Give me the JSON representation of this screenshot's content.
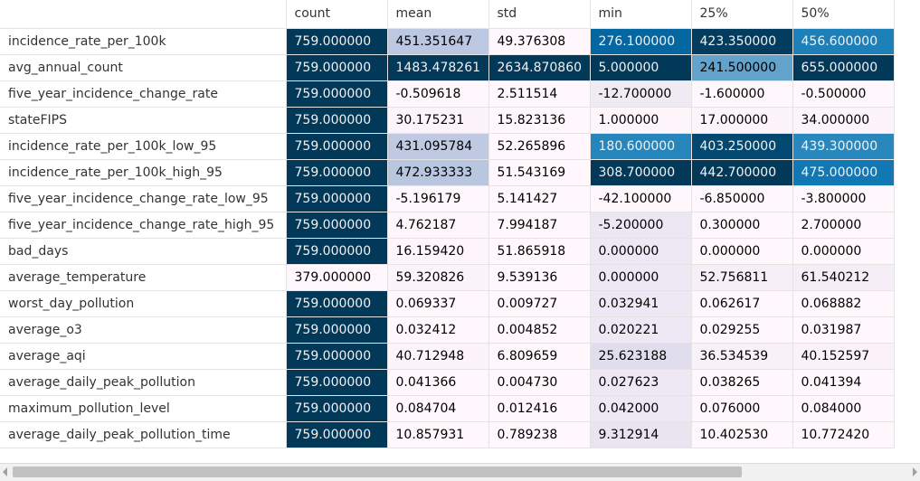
{
  "columns": [
    "count",
    "mean",
    "std",
    "min",
    "25%",
    "50%"
  ],
  "rows": [
    {
      "label": "incidence_rate_per_100k",
      "cells": [
        {
          "v": "759.000000",
          "bg": "#023858"
        },
        {
          "v": "451.351647",
          "bg": "#bcc7e1"
        },
        {
          "v": "49.376308",
          "bg": "#fff7fb"
        },
        {
          "v": "276.100000",
          "bg": "#0567a1"
        },
        {
          "v": "423.350000",
          "bg": "#023d60"
        },
        {
          "v": "456.600000",
          "bg": "#1e80b8"
        }
      ]
    },
    {
      "label": "avg_annual_count",
      "cells": [
        {
          "v": "759.000000",
          "bg": "#023858"
        },
        {
          "v": "1483.478261",
          "bg": "#023858"
        },
        {
          "v": "2634.870860",
          "bg": "#023858"
        },
        {
          "v": "5.000000",
          "bg": "#023858"
        },
        {
          "v": "241.500000",
          "bg": "#62a2cb"
        },
        {
          "v": "655.000000",
          "bg": "#023858"
        }
      ]
    },
    {
      "label": "five_year_incidence_change_rate",
      "cells": [
        {
          "v": "759.000000",
          "bg": "#023858"
        },
        {
          "v": "-0.509618",
          "bg": "#fff7fb"
        },
        {
          "v": "2.511514",
          "bg": "#fff7fb"
        },
        {
          "v": "-12.700000",
          "bg": "#f0eaf4"
        },
        {
          "v": "-1.600000",
          "bg": "#fff7fb"
        },
        {
          "v": "-0.500000",
          "bg": "#fff7fb"
        }
      ]
    },
    {
      "label": "stateFIPS",
      "cells": [
        {
          "v": "759.000000",
          "bg": "#023858"
        },
        {
          "v": "30.175231",
          "bg": "#fcf4fa"
        },
        {
          "v": "15.823136",
          "bg": "#fff7fb"
        },
        {
          "v": "1.000000",
          "bg": "#fdf5fa"
        },
        {
          "v": "17.000000",
          "bg": "#fcf4fa"
        },
        {
          "v": "34.000000",
          "bg": "#fcf4fa"
        }
      ]
    },
    {
      "label": "incidence_rate_per_100k_low_95",
      "cells": [
        {
          "v": "759.000000",
          "bg": "#023858"
        },
        {
          "v": "431.095784",
          "bg": "#c0c9e2"
        },
        {
          "v": "52.265896",
          "bg": "#fff7fb"
        },
        {
          "v": "180.600000",
          "bg": "#2685bb"
        },
        {
          "v": "403.250000",
          "bg": "#034871"
        },
        {
          "v": "439.300000",
          "bg": "#2887bc"
        }
      ]
    },
    {
      "label": "incidence_rate_per_100k_high_95",
      "cells": [
        {
          "v": "759.000000",
          "bg": "#023858"
        },
        {
          "v": "472.933333",
          "bg": "#b9c6e0"
        },
        {
          "v": "51.543169",
          "bg": "#fff7fb"
        },
        {
          "v": "308.700000",
          "bg": "#023858"
        },
        {
          "v": "442.700000",
          "bg": "#023858"
        },
        {
          "v": "475.000000",
          "bg": "#1278b4"
        }
      ]
    },
    {
      "label": "five_year_incidence_change_rate_low_95",
      "cells": [
        {
          "v": "759.000000",
          "bg": "#023858"
        },
        {
          "v": "-5.196179",
          "bg": "#fff7fb"
        },
        {
          "v": "5.141427",
          "bg": "#fff7fb"
        },
        {
          "v": "-42.100000",
          "bg": "#fff7fb"
        },
        {
          "v": "-6.850000",
          "bg": "#fff7fb"
        },
        {
          "v": "-3.800000",
          "bg": "#fff7fb"
        }
      ]
    },
    {
      "label": "five_year_incidence_change_rate_high_95",
      "cells": [
        {
          "v": "759.000000",
          "bg": "#023858"
        },
        {
          "v": "4.762187",
          "bg": "#fef6fa"
        },
        {
          "v": "7.994187",
          "bg": "#fff7fb"
        },
        {
          "v": "-5.200000",
          "bg": "#ece7f2"
        },
        {
          "v": "0.300000",
          "bg": "#fff7fb"
        },
        {
          "v": "2.700000",
          "bg": "#fff7fb"
        }
      ]
    },
    {
      "label": "bad_days",
      "cells": [
        {
          "v": "759.000000",
          "bg": "#023858"
        },
        {
          "v": "16.159420",
          "bg": "#fdf5fa"
        },
        {
          "v": "51.865918",
          "bg": "#fff7fb"
        },
        {
          "v": "0.000000",
          "bg": "#ede8f3"
        },
        {
          "v": "0.000000",
          "bg": "#fff7fb"
        },
        {
          "v": "0.000000",
          "bg": "#fff7fb"
        }
      ]
    },
    {
      "label": "average_temperature",
      "cells": [
        {
          "v": "379.000000",
          "bg": "#fff7fb"
        },
        {
          "v": "59.320826",
          "bg": "#fbf4f9"
        },
        {
          "v": "9.539136",
          "bg": "#fff7fb"
        },
        {
          "v": "0.000000",
          "bg": "#ede8f3"
        },
        {
          "v": "52.756811",
          "bg": "#f6eff7"
        },
        {
          "v": "61.540212",
          "bg": "#f5eef6"
        }
      ]
    },
    {
      "label": "worst_day_pollution",
      "cells": [
        {
          "v": "759.000000",
          "bg": "#023858"
        },
        {
          "v": "0.069337",
          "bg": "#fff7fb"
        },
        {
          "v": "0.009727",
          "bg": "#fff7fb"
        },
        {
          "v": "0.032941",
          "bg": "#ede8f3"
        },
        {
          "v": "0.062617",
          "bg": "#fff7fb"
        },
        {
          "v": "0.068882",
          "bg": "#fff7fb"
        }
      ]
    },
    {
      "label": "average_o3",
      "cells": [
        {
          "v": "759.000000",
          "bg": "#023858"
        },
        {
          "v": "0.032412",
          "bg": "#fff7fb"
        },
        {
          "v": "0.004852",
          "bg": "#fff7fb"
        },
        {
          "v": "0.020221",
          "bg": "#ede8f3"
        },
        {
          "v": "0.029255",
          "bg": "#fff7fb"
        },
        {
          "v": "0.031987",
          "bg": "#fff7fb"
        }
      ]
    },
    {
      "label": "average_aqi",
      "cells": [
        {
          "v": "759.000000",
          "bg": "#023858"
        },
        {
          "v": "40.712948",
          "bg": "#fcf4fa"
        },
        {
          "v": "6.809659",
          "bg": "#fff7fb"
        },
        {
          "v": "25.623188",
          "bg": "#e0dded"
        },
        {
          "v": "36.534539",
          "bg": "#f8f1f8"
        },
        {
          "v": "40.152597",
          "bg": "#faf2f8"
        }
      ]
    },
    {
      "label": "average_daily_peak_pollution",
      "cells": [
        {
          "v": "759.000000",
          "bg": "#023858"
        },
        {
          "v": "0.041366",
          "bg": "#fff7fb"
        },
        {
          "v": "0.004730",
          "bg": "#fff7fb"
        },
        {
          "v": "0.027623",
          "bg": "#ede8f3"
        },
        {
          "v": "0.038265",
          "bg": "#fff7fb"
        },
        {
          "v": "0.041394",
          "bg": "#fff7fb"
        }
      ]
    },
    {
      "label": "maximum_pollution_level",
      "cells": [
        {
          "v": "759.000000",
          "bg": "#023858"
        },
        {
          "v": "0.084704",
          "bg": "#fff7fb"
        },
        {
          "v": "0.012416",
          "bg": "#fff7fb"
        },
        {
          "v": "0.042000",
          "bg": "#ede8f3"
        },
        {
          "v": "0.076000",
          "bg": "#fff7fb"
        },
        {
          "v": "0.084000",
          "bg": "#fff7fb"
        }
      ]
    },
    {
      "label": "average_daily_peak_pollution_time",
      "cells": [
        {
          "v": "759.000000",
          "bg": "#023858"
        },
        {
          "v": "10.857931",
          "bg": "#fff7fb"
        },
        {
          "v": "0.789238",
          "bg": "#fff7fb"
        },
        {
          "v": "9.312914",
          "bg": "#e8e4f0"
        },
        {
          "v": "10.402530",
          "bg": "#fff7fb"
        },
        {
          "v": "10.772420",
          "bg": "#fff7fb"
        }
      ]
    }
  ],
  "colors": {
    "header_text": "#333333",
    "grid_line": "#e4e4e4",
    "dark_cell_text": "#f1f1f1",
    "light_cell_text": "#000000",
    "scrollbar_track": "#f1f1f1",
    "scrollbar_thumb": "#c1c1c1"
  },
  "scrollbar": {
    "horizontal_position": 0.0,
    "visible_fraction": 0.8
  }
}
